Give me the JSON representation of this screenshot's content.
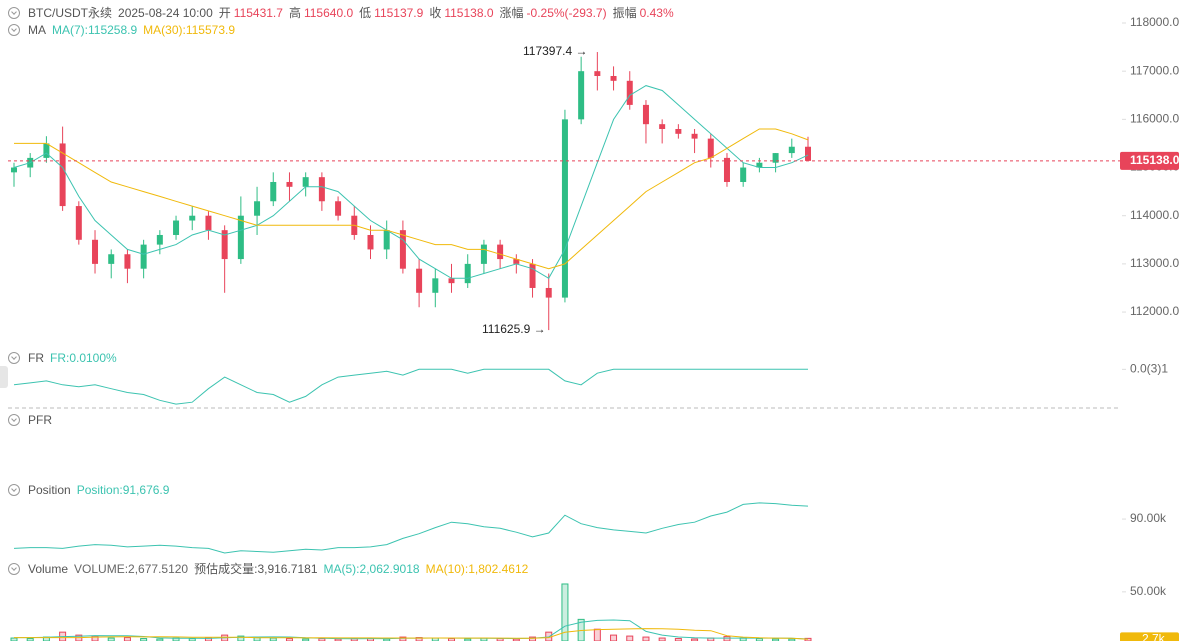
{
  "header": {
    "symbol": "BTC/USDT永续",
    "time": "2025-08-24 10:00",
    "fields": [
      {
        "label": "开",
        "value": "115431.7"
      },
      {
        "label": "高",
        "value": "115640.0"
      },
      {
        "label": "低",
        "value": "115137.9"
      },
      {
        "label": "收",
        "value": "115138.0"
      },
      {
        "label": "涨幅",
        "value": "-0.25%(-293.7)"
      },
      {
        "label": "振幅",
        "value": "0.43%"
      }
    ]
  },
  "chart_data": [
    {
      "type": "candlestick",
      "legend": "MA",
      "up_color": "#2ebd85",
      "down_color": "#e8445a",
      "open": [
        114900,
        115000,
        115200,
        115500,
        114200,
        113500,
        113000,
        113200,
        112900,
        113400,
        113600,
        113900,
        114000,
        113700,
        113100,
        114000,
        114300,
        114700,
        114600,
        114800,
        114300,
        114000,
        113600,
        113300,
        113700,
        112900,
        112400,
        112700,
        112600,
        113000,
        113400,
        113100,
        113000,
        112500,
        112300,
        116000,
        117000,
        116900,
        116800,
        116300,
        115900,
        115800,
        115700,
        115600,
        115200,
        114700,
        115000,
        115100,
        115300,
        115431.7
      ],
      "high": [
        115100,
        115300,
        115650,
        115850,
        114300,
        113700,
        113300,
        113300,
        113500,
        113700,
        114000,
        114200,
        114100,
        113800,
        114400,
        114600,
        114900,
        114900,
        114900,
        114900,
        114400,
        114200,
        113800,
        113900,
        113900,
        113100,
        112900,
        113000,
        113200,
        113500,
        113500,
        113200,
        113100,
        112800,
        116200,
        117300,
        117397.4,
        117100,
        117000,
        116400,
        116000,
        115900,
        115800,
        115700,
        115300,
        115100,
        115200,
        115300,
        115600,
        115640.0
      ],
      "low": [
        114600,
        114800,
        115100,
        114100,
        113400,
        112800,
        112700,
        112600,
        112700,
        113200,
        113500,
        113700,
        113500,
        112400,
        113000,
        113600,
        114200,
        114300,
        114400,
        114100,
        113900,
        113500,
        113100,
        113100,
        112800,
        112100,
        112100,
        112400,
        112500,
        112800,
        112900,
        112800,
        112300,
        111625.9,
        112200,
        115900,
        116600,
        116600,
        116200,
        115500,
        115500,
        115600,
        115300,
        115000,
        114600,
        114600,
        114900,
        114900,
        115200,
        115137.9
      ],
      "close": [
        115000,
        115200,
        115500,
        114200,
        113500,
        113000,
        113200,
        112900,
        113400,
        113600,
        113900,
        114000,
        113700,
        113100,
        114000,
        114300,
        114700,
        114600,
        114800,
        114300,
        114000,
        113600,
        113300,
        113700,
        112900,
        112400,
        112700,
        112600,
        113000,
        113400,
        113100,
        113000,
        112500,
        112300,
        116000,
        117000,
        116900,
        116800,
        116300,
        115900,
        115800,
        115700,
        115600,
        115200,
        114700,
        115000,
        115100,
        115300,
        115431.7,
        115138.0
      ],
      "ma": [
        {
          "name": "MA(7):115258.9",
          "color": "#3cc3b0",
          "values": [
            115000,
            115100,
            115300,
            115000,
            114400,
            113900,
            113600,
            113300,
            113200,
            113300,
            113400,
            113600,
            113700,
            113600,
            113700,
            113800,
            114000,
            114300,
            114600,
            114600,
            114500,
            114200,
            113900,
            113700,
            113500,
            113100,
            112900,
            112700,
            112700,
            112800,
            112900,
            113000,
            112900,
            112700,
            113300,
            114200,
            115100,
            116000,
            116500,
            116700,
            116600,
            116300,
            116000,
            115700,
            115400,
            115100,
            115000,
            115000,
            115100,
            115258.9
          ]
        },
        {
          "name": "MA(30):115573.9",
          "color": "#f0b90b",
          "values": [
            115500,
            115500,
            115500,
            115300,
            115100,
            114900,
            114700,
            114600,
            114500,
            114400,
            114300,
            114200,
            114100,
            114000,
            113900,
            113800,
            113800,
            113800,
            113800,
            113800,
            113800,
            113800,
            113700,
            113700,
            113600,
            113500,
            113400,
            113400,
            113300,
            113300,
            113200,
            113100,
            113000,
            112900,
            113000,
            113300,
            113600,
            113900,
            114200,
            114500,
            114700,
            114900,
            115100,
            115200,
            115400,
            115600,
            115800,
            115800,
            115700,
            115573.9
          ]
        }
      ],
      "ylim": [
        111420,
        118270
      ],
      "yticks": [
        {
          "value": 112000,
          "label": "112000.0"
        },
        {
          "value": 113000,
          "label": "113000.0"
        },
        {
          "value": 114000,
          "label": "114000.0"
        },
        {
          "value": 115000,
          "label": "115000.0"
        },
        {
          "value": 116000,
          "label": "116000.0"
        },
        {
          "value": 117000,
          "label": "117000.0"
        },
        {
          "value": 118000,
          "label": "118000.0"
        }
      ],
      "last_label": {
        "value": 115138.0,
        "label": "115138.0"
      },
      "annotations": [
        "117397.4 →",
        "111625.9 →"
      ]
    },
    {
      "type": "line",
      "legend": "FR",
      "ylim": [
        8e-05,
        0.00011
      ],
      "yticks": [
        {
          "value": 0.0001,
          "label": "0.0(3)1"
        }
      ],
      "series": [
        {
          "name": "FR:0.0100%",
          "color": "#3cc3b0",
          "values": [
            9.2e-05,
            9.3e-05,
            9.4e-05,
            9.2e-05,
            9.1e-05,
            9.2e-05,
            9e-05,
            8.8e-05,
            8.7e-05,
            8.4e-05,
            8.2e-05,
            8.3e-05,
            9e-05,
            9.6e-05,
            9.2e-05,
            8.8e-05,
            8.7e-05,
            8.3e-05,
            8.6e-05,
            9.2e-05,
            9.6e-05,
            9.7e-05,
            9.8e-05,
            9.9e-05,
            9.7e-05,
            0.0001,
            0.0001,
            0.0001,
            9.8e-05,
            0.0001,
            0.0001,
            0.0001,
            0.0001,
            0.0001,
            9.4e-05,
            9.2e-05,
            9.8e-05,
            0.0001,
            0.0001,
            0.0001,
            0.0001,
            0.0001,
            0.0001,
            0.0001,
            0.0001,
            0.0001,
            0.0001,
            0.0001,
            0.0001,
            0.0001
          ]
        }
      ]
    },
    {
      "type": "line",
      "legend": "PFR"
    },
    {
      "type": "line",
      "legend": "Position",
      "ylim": [
        84700,
        94800
      ],
      "yticks": [
        {
          "value": 90000,
          "label": "90.00k"
        }
      ],
      "series": [
        {
          "name": "Position:91,676.9",
          "color": "#3cc3b0",
          "values": [
            86200,
            86300,
            86300,
            86200,
            86500,
            86700,
            86600,
            86400,
            86500,
            86600,
            86500,
            86300,
            86200,
            85600,
            85900,
            85800,
            85700,
            85900,
            86100,
            86000,
            86300,
            86300,
            86400,
            86700,
            87500,
            88100,
            88900,
            89600,
            89400,
            89000,
            88800,
            88300,
            87700,
            88200,
            90500,
            89400,
            88900,
            88600,
            88400,
            88200,
            88800,
            89300,
            89600,
            90400,
            90900,
            91900,
            92100,
            92000,
            91800,
            91676.9
          ]
        }
      ]
    },
    {
      "type": "bar",
      "legend": "Volume",
      "ylim": [
        0,
        59000
      ],
      "yticks": [
        {
          "value": 50000,
          "label": "50.00k"
        }
      ],
      "series": [
        {
          "name": "VOLUME:2,677.5120",
          "color": "#666666",
          "values": [
            3000,
            2500,
            4000,
            9000,
            6000,
            5000,
            3000,
            3500,
            2500,
            2000,
            3000,
            2500,
            3000,
            6000,
            5000,
            4000,
            3000,
            2500,
            2000,
            2500,
            2000,
            2500,
            3000,
            2000,
            4000,
            3500,
            3000,
            2500,
            2000,
            3000,
            2500,
            2000,
            4000,
            9000,
            58000,
            22000,
            12000,
            6000,
            5000,
            4000,
            3000,
            2500,
            2000,
            3000,
            4500,
            3000,
            2500,
            2000,
            2000,
            2677.512
          ]
        }
      ],
      "estimate": "预估成交量:3,916.7181",
      "ma": [
        {
          "name": "MA(5):2,062.9018",
          "color": "#3cc3b0",
          "values": [
            3500,
            3500,
            3800,
            4500,
            4900,
            5500,
            5400,
            5300,
            4600,
            3200,
            2800,
            2700,
            2600,
            3300,
            3900,
            4100,
            4200,
            4100,
            3300,
            2800,
            2400,
            2300,
            2400,
            2400,
            2700,
            3000,
            3100,
            3000,
            3000,
            2800,
            2600,
            2500,
            2700,
            4100,
            15100,
            19000,
            21000,
            21400,
            20600,
            9800,
            6000,
            4100,
            3300,
            2900,
            3000,
            3000,
            3000,
            3000,
            2800,
            2062.9018
          ]
        },
        {
          "name": "MA(10):1,802.4612",
          "color": "#f0b90b",
          "values": [
            3500,
            3500,
            3500,
            3500,
            3500,
            4000,
            4200,
            4300,
            4200,
            4300,
            4200,
            3900,
            3800,
            3900,
            3900,
            3400,
            3400,
            3300,
            3200,
            3300,
            3200,
            3200,
            3200,
            3100,
            3100,
            3000,
            3100,
            3100,
            3000,
            3100,
            2900,
            2800,
            2800,
            3500,
            8800,
            10700,
            11600,
            12000,
            12300,
            12600,
            12500,
            12000,
            11000,
            10500,
            5400,
            4000,
            3300,
            2900,
            2800,
            1802.4612
          ]
        }
      ],
      "last_label": {
        "value": 2677.512,
        "label": "2.7k"
      }
    }
  ]
}
